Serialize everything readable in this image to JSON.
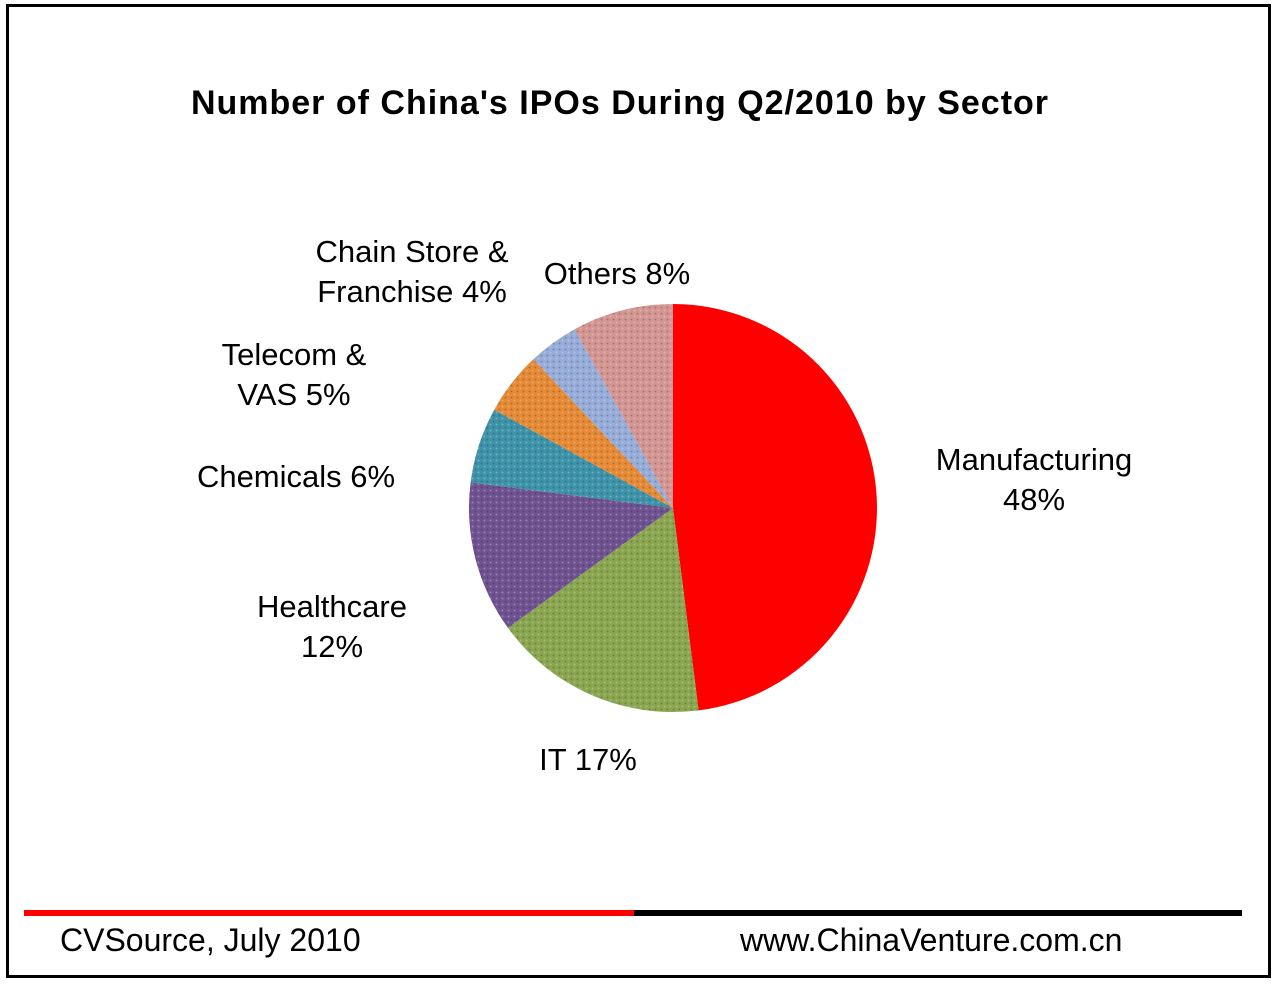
{
  "chart_data": {
    "type": "pie",
    "title": "Number of China's IPOs During Q2/2010 by Sector",
    "slices": [
      {
        "name": "Manufacturing",
        "value": 48,
        "label": [
          "Manufacturing",
          "48%"
        ],
        "color": "#ff0000"
      },
      {
        "name": "IT",
        "value": 17,
        "label": [
          "IT 17%"
        ],
        "color": "#8aa650"
      },
      {
        "name": "Healthcare",
        "value": 12,
        "label": [
          "Healthcare",
          "12%"
        ],
        "color": "#6f5391"
      },
      {
        "name": "Chemicals",
        "value": 6,
        "label": [
          "Chemicals 6%"
        ],
        "color": "#3f93a8"
      },
      {
        "name": "Telecom & VAS",
        "value": 5,
        "label": [
          "Telecom &",
          "VAS 5%"
        ],
        "color": "#e58a37"
      },
      {
        "name": "Chain Store & Franchise",
        "value": 4,
        "label": [
          "Chain Store &",
          "Franchise 4%"
        ],
        "color": "#97acd8"
      },
      {
        "name": "Others",
        "value": 8,
        "label": [
          "Others 8%"
        ],
        "color": "#d49693"
      }
    ],
    "start": "12 o'clock",
    "direction": "clockwise"
  },
  "footer": {
    "source": "CVSource, July  2010",
    "website": "www.ChinaVenture.com.cn",
    "colors": {
      "left_rule": "#ff0000",
      "right_rule": "#000000"
    }
  }
}
